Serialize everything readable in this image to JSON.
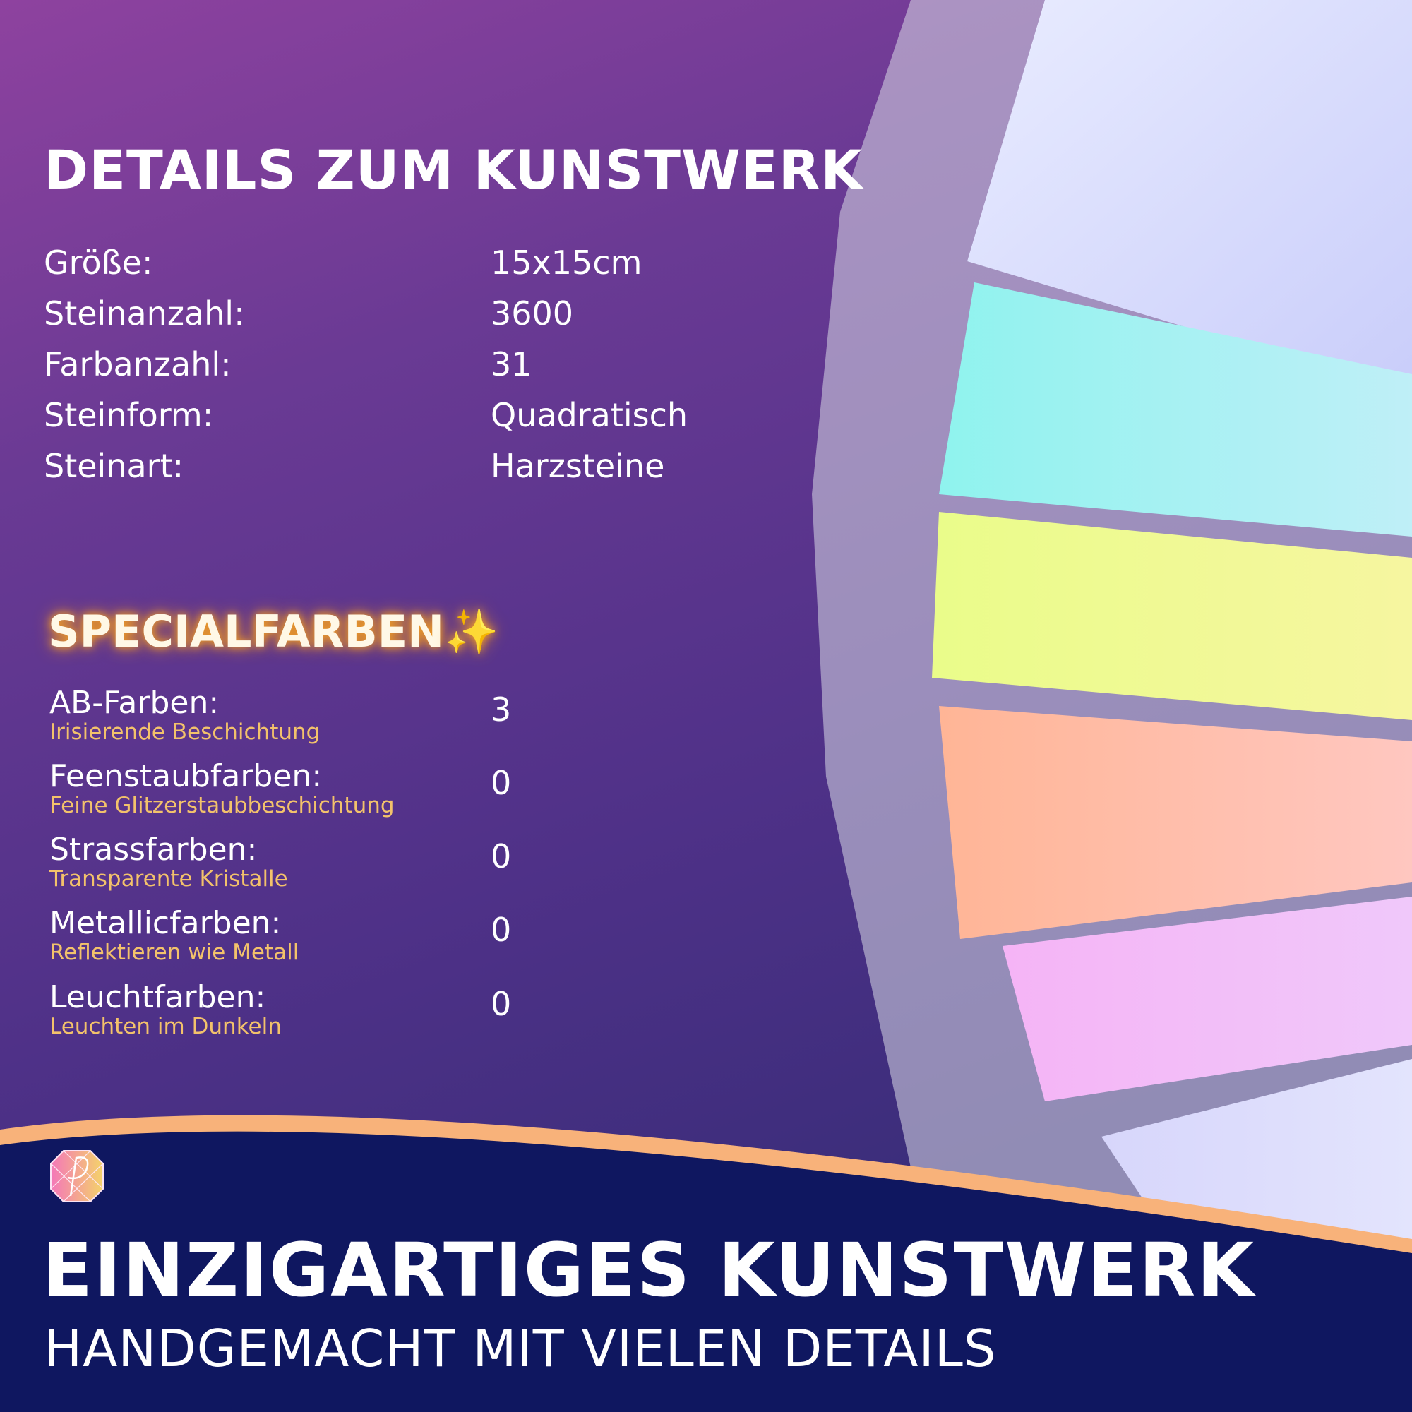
{
  "title": "DETAILS ZUM KUNSTWERK",
  "details": [
    {
      "label": "Größe:",
      "value": "15x15cm"
    },
    {
      "label": "Steinanzahl:",
      "value": "3600"
    },
    {
      "label": "Farbanzahl:",
      "value": "31"
    },
    {
      "label": "Steinform:",
      "value": "Quadratisch"
    },
    {
      "label": "Steinart:",
      "value": "Harzsteine"
    }
  ],
  "special": {
    "title": "SPECIALFARBEN",
    "icon": "sparkles-icon",
    "items": [
      {
        "label": "AB-Farben:",
        "sub": "Irisierende Beschichtung",
        "value": "3"
      },
      {
        "label": "Feenstaubfarben:",
        "sub": "Feine Glitzerstaubbeschichtung",
        "value": "0"
      },
      {
        "label": "Strassfarben:",
        "sub": "Transparente Kristalle",
        "value": "0"
      },
      {
        "label": "Metallicfarben:",
        "sub": "Reflektieren wie Metall",
        "value": "0"
      },
      {
        "label": "Leuchtfarben:",
        "sub": "Leuchten im Dunkeln",
        "value": "0"
      }
    ]
  },
  "footer": {
    "headline": "EINZIGARTIGES KUNSTWERK",
    "subline": "HANDGEMACHT MIT VIELEN DETAILS"
  },
  "colors": {
    "accent": "#f7a928",
    "subtext": "#f3c26b",
    "footer_bg": "#0f1760",
    "wave": "#f8b27a"
  }
}
